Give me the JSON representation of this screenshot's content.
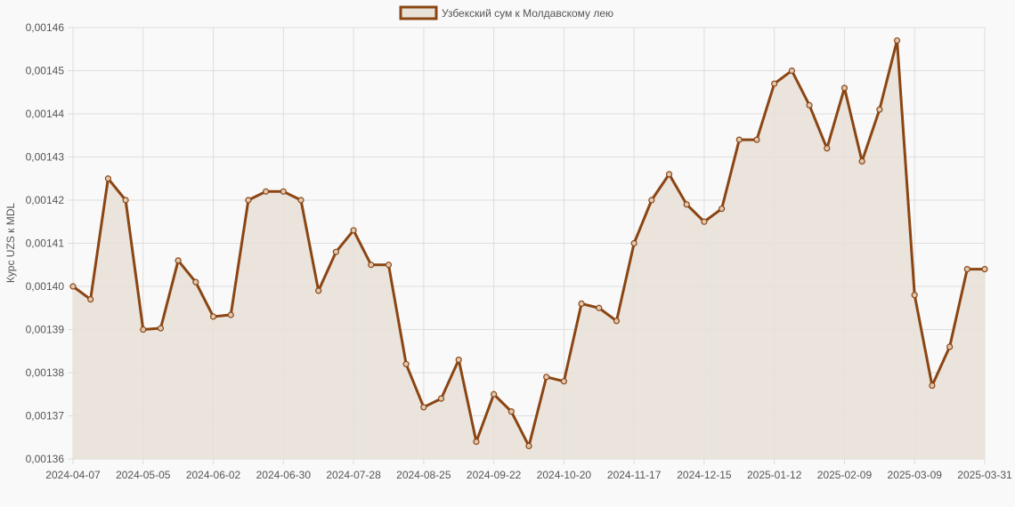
{
  "chart_data": {
    "type": "area",
    "legend": {
      "position": "top",
      "entries": [
        "Узбекский сум к Молдавскому лею"
      ]
    },
    "ylabel": "Курс UZS к MDL",
    "xlabel": "",
    "ylim": [
      0.00136,
      0.00146
    ],
    "y_ticks": [
      "0,00136",
      "0,00137",
      "0,00138",
      "0,00139",
      "0,00140",
      "0,00141",
      "0,00142",
      "0,00143",
      "0,00144",
      "0,00145",
      "0,00146"
    ],
    "x_tick_labels": [
      "2024-04-07",
      "2024-05-05",
      "2024-06-02",
      "2024-06-30",
      "2024-07-28",
      "2024-08-25",
      "2024-09-22",
      "2024-10-20",
      "2024-11-17",
      "2024-12-15",
      "2025-01-12",
      "2025-02-09",
      "2025-03-09",
      "2025-03-31"
    ],
    "grid": true,
    "colors": {
      "line": "#8b4513",
      "fill": "#e8e1d8",
      "grid": "#dddddd"
    },
    "series": [
      {
        "name": "Узбекский сум к Молдавскому лею",
        "x": [
          "2024-04-07",
          "2024-04-14",
          "2024-04-21",
          "2024-04-28",
          "2024-05-05",
          "2024-05-12",
          "2024-05-19",
          "2024-05-26",
          "2024-06-02",
          "2024-06-09",
          "2024-06-16",
          "2024-06-23",
          "2024-06-30",
          "2024-07-07",
          "2024-07-14",
          "2024-07-21",
          "2024-07-28",
          "2024-08-04",
          "2024-08-11",
          "2024-08-18",
          "2024-08-25",
          "2024-09-01",
          "2024-09-08",
          "2024-09-15",
          "2024-09-22",
          "2024-09-29",
          "2024-10-06",
          "2024-10-13",
          "2024-10-20",
          "2024-10-27",
          "2024-11-03",
          "2024-11-10",
          "2024-11-17",
          "2024-11-24",
          "2024-12-01",
          "2024-12-08",
          "2024-12-15",
          "2024-12-22",
          "2024-12-29",
          "2025-01-05",
          "2025-01-12",
          "2025-01-19",
          "2025-01-26",
          "2025-02-02",
          "2025-02-09",
          "2025-02-16",
          "2025-02-23",
          "2025-03-02",
          "2025-03-09",
          "2025-03-16",
          "2025-03-23",
          "2025-03-30",
          "2025-03-31"
        ],
        "values": [
          0.0014,
          0.001397,
          0.001425,
          0.00142,
          0.00139,
          0.0013903,
          0.001406,
          0.001401,
          0.001393,
          0.0013934,
          0.00142,
          0.001422,
          0.001422,
          0.00142,
          0.001399,
          0.001408,
          0.001413,
          0.001405,
          0.001405,
          0.001382,
          0.001372,
          0.001374,
          0.001383,
          0.001364,
          0.001375,
          0.001371,
          0.001363,
          0.001379,
          0.001378,
          0.001396,
          0.001395,
          0.001392,
          0.00141,
          0.00142,
          0.001426,
          0.001419,
          0.001415,
          0.001418,
          0.001434,
          0.001434,
          0.001447,
          0.00145,
          0.001442,
          0.001432,
          0.001446,
          0.001429,
          0.001441,
          0.001457,
          0.001398,
          0.001377,
          0.001386,
          0.001404,
          0.001404
        ]
      }
    ]
  }
}
